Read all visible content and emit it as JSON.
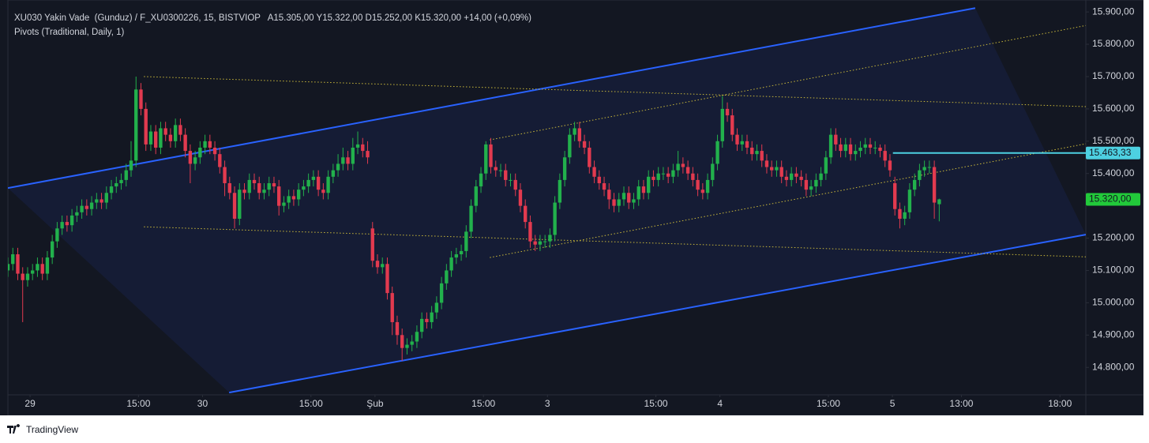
{
  "header": {
    "symbol": "XU030 Yakin Vade  (Gunduz) / F_XU0300226, 15, BISTVIOP",
    "ohlc": "A15.305,00 Y15.322,00 D15.252,00 K15.320,00 +14,00 (+0,09%)",
    "indicator": "Pivots (Traditional, Daily, 1)"
  },
  "footer": {
    "brand": "TradingView"
  },
  "chart_data": {
    "type": "candlestick",
    "up_color": "#22b14c",
    "down_color": "#e23a4f",
    "grid": false,
    "xlim": [
      0,
      218.75
    ],
    "ylim": [
      14715,
      15937
    ],
    "xticks": [
      {
        "value": 4.5,
        "label": "29"
      },
      {
        "value": 26.5,
        "label": "15:00"
      },
      {
        "value": 39.5,
        "label": "30"
      },
      {
        "value": 61.5,
        "label": "15:00"
      },
      {
        "value": 74.5,
        "label": "Şub"
      },
      {
        "value": 96.5,
        "label": "15:00"
      },
      {
        "value": 109.5,
        "label": "3"
      },
      {
        "value": 131.5,
        "label": "15:00"
      },
      {
        "value": 144.5,
        "label": "4"
      },
      {
        "value": 166.5,
        "label": "15:00"
      },
      {
        "value": 179.5,
        "label": "5"
      },
      {
        "value": 193.5,
        "label": "13:00"
      },
      {
        "value": 213.5,
        "label": "18:00"
      }
    ],
    "yticks": [
      {
        "value": 14800,
        "label": "14.800,00"
      },
      {
        "value": 14900,
        "label": "14.900,00"
      },
      {
        "value": 15000,
        "label": "15.000,00"
      },
      {
        "value": 15100,
        "label": "15.100,00"
      },
      {
        "value": 15200,
        "label": "15.200,00"
      },
      {
        "value": 15400,
        "label": "15.400,00"
      },
      {
        "value": 15500,
        "label": "15.500,00"
      },
      {
        "value": 15600,
        "label": "15.600,00"
      },
      {
        "value": 15700,
        "label": "15.700,00"
      },
      {
        "value": 15800,
        "label": "15.800,00"
      },
      {
        "value": 15900,
        "label": "15.900,00"
      }
    ],
    "open": [
      15100,
      15120,
      15150,
      15090,
      15070,
      15090,
      15100,
      15120,
      15090,
      15140,
      15190,
      15230,
      15250,
      15240,
      15270,
      15280,
      15300,
      15290,
      15310,
      15320,
      15310,
      15340,
      15360,
      15370,
      15380,
      15410,
      15440,
      15660,
      15600,
      15490,
      15530,
      15480,
      15540,
      15520,
      15500,
      15550,
      15520,
      15470,
      15430,
      15450,
      15480,
      15500,
      15480,
      15460,
      15420,
      15370,
      15340,
      15260,
      15350,
      15340,
      15380,
      15370,
      15340,
      15350,
      15370,
      15360,
      15300,
      15310,
      15330,
      15320,
      15350,
      15360,
      15380,
      15390,
      15350,
      15340,
      15390,
      15410,
      15430,
      15450,
      15430,
      15480,
      15490,
      15470,
      15230,
      15130,
      15110,
      15120,
      15030,
      14940,
      14900,
      14860,
      14870,
      14880,
      14910,
      14950,
      14940,
      14970,
      15000,
      15060,
      15100,
      15140,
      15150,
      15160,
      15220,
      15300,
      15360,
      15400,
      15490,
      15420,
      15410,
      15410,
      15380,
      15380,
      15350,
      15300,
      15250,
      15190,
      15180,
      15190,
      15190,
      15210,
      15310,
      15380,
      15450,
      15520,
      15540,
      15500,
      15480,
      15420,
      15390,
      15370,
      15350,
      15320,
      15300,
      15320,
      15340,
      15310,
      15320,
      15360,
      15340,
      15390,
      15380,
      15400,
      15400,
      15390,
      15410,
      15430,
      15420,
      15400,
      15380,
      15350,
      15340,
      15380,
      15430,
      15500,
      15600,
      15580,
      15520,
      15490,
      15500,
      15480,
      15460,
      15470,
      15440,
      15420,
      15410,
      15420,
      15390,
      15380,
      15400,
      15390,
      15380,
      15350,
      15360,
      15380,
      15400,
      15450,
      15520,
      15490,
      15470,
      15490,
      15460,
      15470,
      15480,
      15490,
      15480,
      15480,
      15470,
      15440,
      15370,
      15290,
      15260,
      15280,
      15350,
      15380,
      15410,
      15420,
      15420,
      15305
    ],
    "high": [
      15140,
      15170,
      15170,
      15110,
      15110,
      15120,
      15140,
      15140,
      15160,
      15210,
      15250,
      15270,
      15270,
      15290,
      15300,
      15320,
      15320,
      15330,
      15340,
      15340,
      15360,
      15380,
      15390,
      15400,
      15430,
      15500,
      15700,
      15680,
      15620,
      15550,
      15550,
      15560,
      15560,
      15540,
      15570,
      15570,
      15540,
      15490,
      15470,
      15500,
      15520,
      15520,
      15500,
      15480,
      15440,
      15390,
      15360,
      15370,
      15370,
      15400,
      15400,
      15390,
      15370,
      15390,
      15390,
      15380,
      15330,
      15350,
      15350,
      15370,
      15380,
      15400,
      15410,
      15410,
      15370,
      15410,
      15430,
      15460,
      15480,
      15470,
      15510,
      15530,
      15510,
      15500,
      15250,
      15150,
      15140,
      15140,
      15050,
      14960,
      14920,
      14890,
      14900,
      14930,
      14970,
      14970,
      14990,
      15020,
      15080,
      15120,
      15160,
      15170,
      15180,
      15240,
      15320,
      15380,
      15420,
      15500,
      15510,
      15440,
      15430,
      15430,
      15400,
      15400,
      15370,
      15320,
      15270,
      15210,
      15210,
      15210,
      15230,
      15330,
      15400,
      15470,
      15540,
      15560,
      15560,
      15520,
      15500,
      15440,
      15410,
      15390,
      15370,
      15340,
      15340,
      15360,
      15360,
      15340,
      15380,
      15380,
      15410,
      15410,
      15420,
      15420,
      15420,
      15430,
      15470,
      15450,
      15440,
      15420,
      15400,
      15370,
      15400,
      15450,
      15520,
      15640,
      15620,
      15600,
      15540,
      15520,
      15520,
      15500,
      15490,
      15490,
      15460,
      15440,
      15440,
      15440,
      15410,
      15420,
      15420,
      15410,
      15400,
      15380,
      15400,
      15420,
      15470,
      15540,
      15540,
      15510,
      15510,
      15510,
      15490,
      15500,
      15510,
      15510,
      15500,
      15490,
      15490,
      15460,
      15390,
      15310,
      15300,
      15370,
      15400,
      15430,
      15440,
      15440,
      15440,
      15322
    ],
    "low": [
      15080,
      15100,
      15070,
      14940,
      15050,
      15070,
      15080,
      15070,
      15070,
      15120,
      15170,
      15210,
      15220,
      15220,
      15250,
      15260,
      15270,
      15270,
      15290,
      15290,
      15290,
      15320,
      15340,
      15350,
      15360,
      15390,
      15420,
      15580,
      15470,
      15470,
      15460,
      15460,
      15500,
      15480,
      15480,
      15500,
      15450,
      15370,
      15410,
      15430,
      15460,
      15460,
      15440,
      15400,
      15330,
      15320,
      15230,
      15240,
      15320,
      15320,
      15350,
      15320,
      15320,
      15330,
      15340,
      15270,
      15280,
      15290,
      15300,
      15300,
      15330,
      15340,
      15360,
      15330,
      15320,
      15320,
      15370,
      15390,
      15410,
      15410,
      15410,
      15460,
      15450,
      15430,
      15110,
      15090,
      15090,
      15010,
      14900,
      14870,
      14820,
      14840,
      14850,
      14860,
      14890,
      14920,
      14920,
      14950,
      14980,
      15040,
      15080,
      15120,
      15130,
      15140,
      15200,
      15280,
      15340,
      15380,
      15400,
      15390,
      15390,
      15360,
      15360,
      15330,
      15280,
      15230,
      15170,
      15160,
      15160,
      15170,
      15170,
      15190,
      15290,
      15360,
      15430,
      15500,
      15480,
      15460,
      15400,
      15370,
      15350,
      15330,
      15290,
      15280,
      15280,
      15300,
      15290,
      15290,
      15300,
      15320,
      15320,
      15360,
      15360,
      15380,
      15370,
      15370,
      15390,
      15400,
      15380,
      15360,
      15330,
      15320,
      15320,
      15360,
      15410,
      15480,
      15560,
      15500,
      15470,
      15470,
      15460,
      15440,
      15440,
      15420,
      15400,
      15390,
      15390,
      15370,
      15360,
      15360,
      15370,
      15360,
      15330,
      15330,
      15340,
      15360,
      15380,
      15430,
      15470,
      15450,
      15450,
      15440,
      15440,
      15450,
      15460,
      15460,
      15460,
      15450,
      15420,
      15390,
      15270,
      15230,
      15240,
      15260,
      15330,
      15360,
      15390,
      15400,
      15260,
      15252
    ],
    "close": [
      15120,
      15150,
      15090,
      15070,
      15090,
      15100,
      15120,
      15090,
      15140,
      15190,
      15230,
      15250,
      15240,
      15270,
      15280,
      15300,
      15290,
      15310,
      15320,
      15310,
      15340,
      15360,
      15370,
      15380,
      15410,
      15440,
      15660,
      15600,
      15490,
      15530,
      15480,
      15540,
      15520,
      15500,
      15550,
      15520,
      15470,
      15430,
      15450,
      15480,
      15500,
      15480,
      15460,
      15420,
      15370,
      15340,
      15260,
      15350,
      15340,
      15380,
      15370,
      15340,
      15350,
      15370,
      15360,
      15300,
      15310,
      15330,
      15320,
      15350,
      15360,
      15380,
      15390,
      15350,
      15340,
      15390,
      15410,
      15430,
      15450,
      15430,
      15480,
      15490,
      15470,
      15450,
      15130,
      15110,
      15120,
      15030,
      14940,
      14900,
      14860,
      14870,
      14880,
      14910,
      14950,
      14940,
      14970,
      15000,
      15060,
      15100,
      15140,
      15150,
      15160,
      15220,
      15300,
      15360,
      15400,
      15490,
      15420,
      15410,
      15410,
      15380,
      15380,
      15350,
      15300,
      15250,
      15190,
      15180,
      15190,
      15190,
      15210,
      15310,
      15380,
      15450,
      15520,
      15540,
      15500,
      15480,
      15420,
      15390,
      15370,
      15350,
      15320,
      15300,
      15320,
      15340,
      15310,
      15320,
      15360,
      15340,
      15390,
      15380,
      15400,
      15400,
      15390,
      15410,
      15430,
      15420,
      15400,
      15380,
      15350,
      15340,
      15380,
      15430,
      15500,
      15600,
      15580,
      15520,
      15490,
      15500,
      15480,
      15460,
      15470,
      15440,
      15420,
      15410,
      15420,
      15390,
      15380,
      15400,
      15390,
      15380,
      15350,
      15360,
      15380,
      15400,
      15450,
      15520,
      15490,
      15470,
      15490,
      15460,
      15470,
      15480,
      15490,
      15480,
      15480,
      15470,
      15440,
      15410,
      15290,
      15260,
      15280,
      15350,
      15380,
      15410,
      15420,
      15420,
      15310,
      15320
    ],
    "lines": [
      {
        "color": "#2962ff",
        "dash": "none",
        "points": [
          [
            0,
            15355
          ],
          [
            196.3,
            15912
          ]
        ]
      },
      {
        "color": "#2962ff",
        "dash": "none",
        "points": [
          [
            44.9,
            14722
          ],
          [
            218.75,
            15211
          ]
        ]
      },
      {
        "color": "#c9b83a",
        "dash": "1.5 2.5",
        "points": [
          [
            27.6,
            15700
          ],
          [
            218.75,
            15607
          ]
        ]
      },
      {
        "color": "#c9b83a",
        "dash": "1.5 2.5",
        "points": [
          [
            27.6,
            15235
          ],
          [
            218.75,
            15142
          ]
        ]
      },
      {
        "color": "#c9b83a",
        "dash": "1.5 2.5",
        "points": [
          [
            97.8,
            15504
          ],
          [
            218.75,
            15858
          ]
        ]
      },
      {
        "color": "#c9b83a",
        "dash": "1.5 2.5",
        "points": [
          [
            97.8,
            15140
          ],
          [
            218.75,
            15492
          ]
        ]
      },
      {
        "color": "#4dd0e1",
        "dash": "none",
        "points": [
          [
            179.6,
            15463.33
          ],
          [
            218.75,
            15463.33
          ]
        ]
      }
    ],
    "price_labels": [
      {
        "value": 15463.33,
        "label": "15.463,33",
        "color": "#4dd0e1"
      },
      {
        "value": 15320,
        "label": "15.320,00",
        "color": "#22c93a"
      }
    ]
  }
}
